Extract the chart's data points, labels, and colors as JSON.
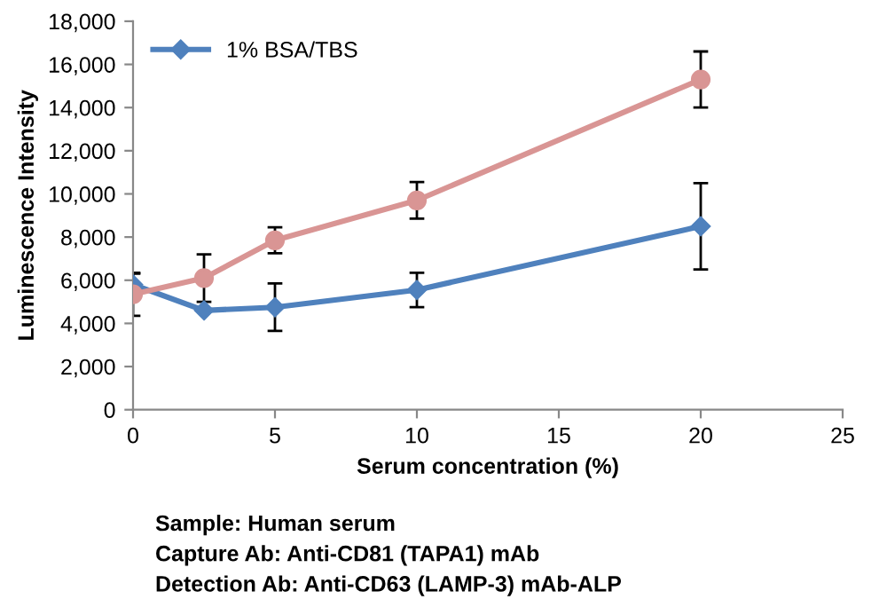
{
  "chart_data": {
    "type": "line",
    "xlabel": "Serum concentration (%)",
    "ylabel": "Luminescence Intensity",
    "xlim": [
      0,
      25
    ],
    "xticks": [
      0,
      5,
      10,
      15,
      20,
      25
    ],
    "ylim": [
      0,
      18000
    ],
    "yticks": [
      {
        "value": 0,
        "label": "0"
      },
      {
        "value": 2000,
        "label": "2,000"
      },
      {
        "value": 4000,
        "label": "4,000"
      },
      {
        "value": 6000,
        "label": "6,000"
      },
      {
        "value": 8000,
        "label": "8,000"
      },
      {
        "value": 10000,
        "label": "10,000"
      },
      {
        "value": 12000,
        "label": "12,000"
      },
      {
        "value": 14000,
        "label": "14,000"
      },
      {
        "value": 16000,
        "label": "16,000"
      },
      {
        "value": 18000,
        "label": "18,000"
      }
    ],
    "x": [
      0,
      2.5,
      5,
      10,
      20
    ],
    "series": [
      {
        "name": "1% BSA/TBS",
        "color": "#4f81bd",
        "marker": "diamond",
        "values": [
          5800,
          4600,
          4750,
          5550,
          8500
        ],
        "errors": [
          500,
          null,
          1100,
          800,
          2000
        ]
      },
      {
        "color": "#d99594",
        "marker": "circle",
        "values": [
          5350,
          6100,
          7850,
          9700,
          15300
        ],
        "errors": [
          1000,
          1100,
          600,
          850,
          1300
        ]
      }
    ],
    "legend": "top left",
    "grid": false,
    "annotations": [
      "Sample: Human serum",
      "Capture Ab: Anti-CD81 (TAPA1) mAb",
      "Detection Ab: Anti-CD63 (LAMP-3) mAb-ALP"
    ]
  }
}
